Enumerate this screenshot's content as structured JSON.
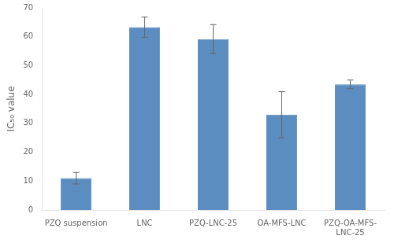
{
  "chart_data": {
    "type": "bar",
    "categories": [
      "PZQ suspension",
      "LNC",
      "PZQ-LNC-25",
      "OA-MFS-LNC",
      "PZQ-OA-MFS-\nLNC-25"
    ],
    "values": [
      11.0,
      63.3,
      59.2,
      33.0,
      43.5
    ],
    "errors": [
      2.0,
      3.5,
      5.0,
      8.0,
      1.5
    ],
    "color": "#5b8dc0",
    "ylabel": "IC₅₀ value",
    "ylim": [
      0,
      70
    ],
    "yticks": [
      0,
      10,
      20,
      30,
      40,
      50,
      60,
      70
    ],
    "grid": false
  }
}
